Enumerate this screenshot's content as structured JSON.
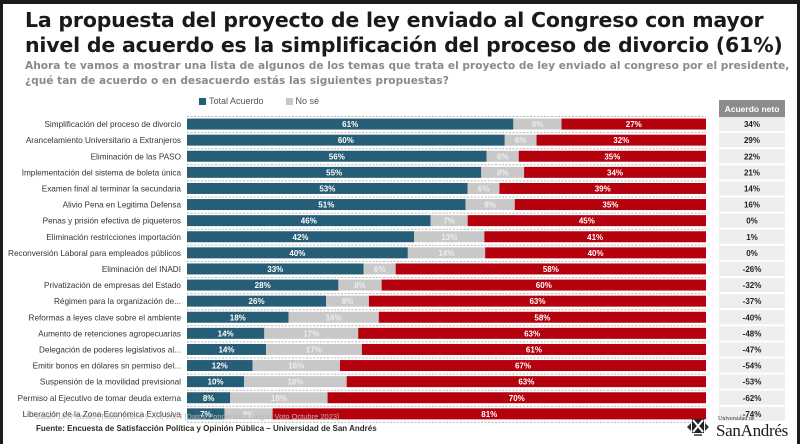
{
  "header": {
    "title": "La propuesta del proyecto de ley enviado al Congreso con mayor nivel de acuerdo es la simplificación del proceso de divorcio (61%)",
    "subtitle": "Ahora te vamos a mostrar una lista de algunos de los temas que trata el proyecto de ley enviado al congreso por el presidente, ¿qué tan de acuerdo o en desacuerdo estás las siguientes propuestas?"
  },
  "legend": {
    "items": [
      {
        "label": "Total Acuerdo",
        "color": "#255e76"
      },
      {
        "label": "No sé",
        "color": "#c8c8c8"
      }
    ]
  },
  "net_column": {
    "header": "Acuerdo neto"
  },
  "colors": {
    "agree": "#255e76",
    "unknown": "#c8c8c8",
    "disagree": "#b5000d",
    "net_bg": "#eeeeee"
  },
  "footer": {
    "base": "Base: 1007 casos (Total), Enero 9 –16 2024 [Datos Ponderados Según Voto Octubre 2023]",
    "source": "Fuente: Encuesta de Satisfacción Política y Opinión Pública – Universidad de San Andrés"
  },
  "logo": {
    "small_text": "Universidad de",
    "big_text": "SanAndrés"
  },
  "chart_data": {
    "type": "bar",
    "orientation": "horizontal-stacked",
    "title": "La propuesta del proyecto de ley enviado al Congreso con mayor nivel de acuerdo es la simplificación del proceso de divorcio (61%)",
    "xlabel": "",
    "ylabel": "",
    "unit": "%",
    "legend_position": "top",
    "categories": [
      "Simplificación del proceso de divorcio",
      "Arancelamiento Universitario a Extranjeros",
      "Eliminación de las PASO",
      "Implementación del sistema de boleta única",
      "Examen final al terminar la secundaria",
      "Alivio Pena en Legitima Defensa",
      "Penas y prisión efectiva de piqueteros",
      "Eliminación restricciones importación",
      "Reconversión Laboral para empleados públicos",
      "Eliminación del INADI",
      "Privatización de empresas del Estado",
      "Régimen para la organización de...",
      "Reformas a leyes clave sobre el ambiente",
      "Aumento de retenciones agropecuarias",
      "Delegación de poderes legislativos al...",
      "Emitir bonos en dólares sn permiso del...",
      "Suspensión de la movilidad previsional",
      "Permiso al Ejecutivo de tomar deuda externa",
      "Liberación de la Zona Económica Exclusiva"
    ],
    "series": [
      {
        "name": "Total Acuerdo",
        "values": [
          61,
          60,
          56,
          55,
          53,
          51,
          46,
          42,
          40,
          33,
          28,
          26,
          18,
          14,
          14,
          12,
          10,
          8,
          7
        ]
      },
      {
        "name": "No sé",
        "values": [
          9,
          6,
          6,
          8,
          6,
          9,
          7,
          13,
          14,
          6,
          8,
          8,
          16,
          17,
          17,
          16,
          18,
          18,
          9
        ]
      },
      {
        "name": "Total Desacuerdo",
        "values": [
          27,
          32,
          35,
          34,
          39,
          35,
          45,
          41,
          40,
          58,
          60,
          63,
          58,
          63,
          61,
          67,
          63,
          70,
          81
        ]
      }
    ],
    "net_agreement": {
      "name": "Acuerdo neto",
      "values": [
        "34%",
        "29%",
        "22%",
        "21%",
        "14%",
        "16%",
        "0%",
        "1%",
        "0%",
        "-26%",
        "-32%",
        "-37%",
        "-40%",
        "-48%",
        "-47%",
        "-54%",
        "-53%",
        "-62%",
        "-74%"
      ]
    }
  }
}
